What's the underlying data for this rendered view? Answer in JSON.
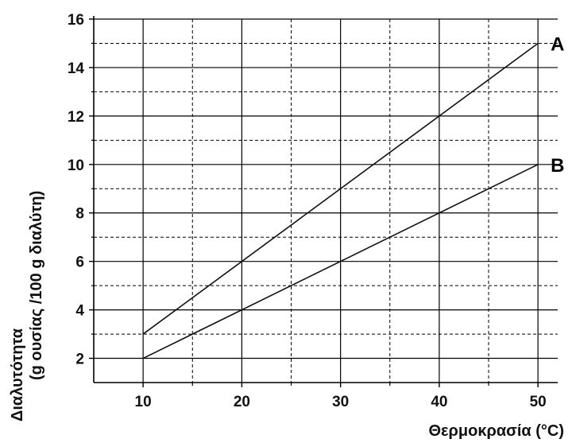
{
  "chart_data": {
    "type": "line",
    "xlabel": "Θερμοκρασία (°C)",
    "ylabel_line1": "Διαλυτότητα",
    "ylabel_line2": "(g ουσίας /100 g διαλύτη)",
    "xlim": [
      5,
      52
    ],
    "ylim": [
      1,
      16
    ],
    "x_ticks": [
      10,
      20,
      30,
      40,
      50
    ],
    "x_minor_ticks": [
      15,
      25,
      35,
      45
    ],
    "y_ticks": [
      2,
      4,
      6,
      8,
      10,
      12,
      14,
      16
    ],
    "y_minor_ticks": [
      3,
      5,
      7,
      9,
      11,
      13,
      15
    ],
    "grid": true,
    "series": [
      {
        "name": "A",
        "x": [
          10,
          50
        ],
        "values": [
          3,
          15
        ]
      },
      {
        "name": "B",
        "x": [
          10,
          50
        ],
        "values": [
          2,
          10
        ]
      }
    ]
  }
}
